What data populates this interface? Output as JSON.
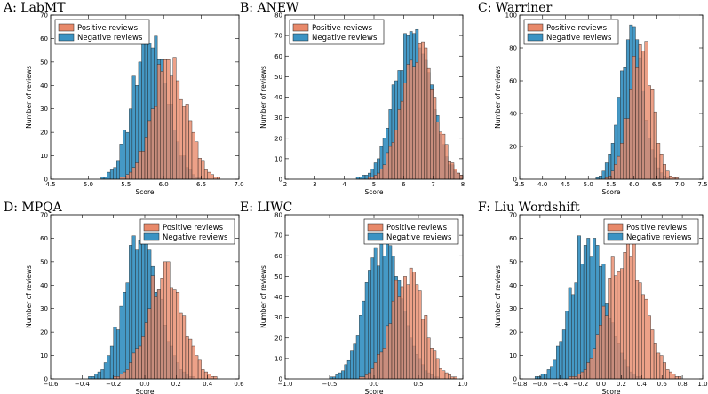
{
  "colors": {
    "positive": "#e8896a",
    "negative": "#3b93c3",
    "edge": "#222222"
  },
  "legend": {
    "positive": "Positive reviews",
    "negative": "Negative reviews"
  },
  "chart_data": [
    {
      "type": "histogram",
      "title": "A: LabMT",
      "xlabel": "Score",
      "ylabel": "Number of reviews",
      "xlim": [
        4.5,
        7.0
      ],
      "ylim": [
        0,
        70
      ],
      "xticks": [
        "4.5",
        "5.0",
        "5.5",
        "6.0",
        "6.5",
        "7.0"
      ],
      "yticks": [
        "0",
        "10",
        "20",
        "30",
        "40",
        "50",
        "60",
        "70"
      ],
      "series": [
        {
          "name": "Positive reviews",
          "mean": 6.08,
          "sd": 0.22,
          "peak": 53
        },
        {
          "name": "Negative reviews",
          "mean": 5.83,
          "sd": 0.22,
          "peak": 65
        }
      ]
    },
    {
      "type": "histogram",
      "title": "B: ANEW",
      "xlabel": "Score",
      "ylabel": "Number of reviews",
      "xlim": [
        2,
        8
      ],
      "ylim": [
        0,
        80
      ],
      "xticks": [
        "2",
        "3",
        "4",
        "5",
        "6",
        "7",
        "8"
      ],
      "yticks": [
        "0",
        "10",
        "20",
        "30",
        "40",
        "50",
        "60",
        "70",
        "80"
      ],
      "series": [
        {
          "name": "Positive reviews",
          "mean": 6.5,
          "sd": 0.55,
          "peak": 70
        },
        {
          "name": "Negative reviews",
          "mean": 6.3,
          "sd": 0.6,
          "peak": 74
        }
      ]
    },
    {
      "type": "histogram",
      "title": "C: Warriner",
      "xlabel": "Score",
      "ylabel": "Number of reviews",
      "xlim": [
        3.5,
        7.5
      ],
      "ylim": [
        0,
        100
      ],
      "xticks": [
        "3.5",
        "4.0",
        "4.5",
        "5.0",
        "5.5",
        "6.0",
        "6.5",
        "7.0",
        "7.5"
      ],
      "yticks": [
        "0",
        "20",
        "40",
        "60",
        "80",
        "100"
      ],
      "series": [
        {
          "name": "Positive reviews",
          "mean": 6.15,
          "sd": 0.25,
          "peak": 88
        },
        {
          "name": "Negative reviews",
          "mean": 5.95,
          "sd": 0.25,
          "peak": 96
        }
      ]
    },
    {
      "type": "histogram",
      "title": "D: MPQA",
      "xlabel": "Score",
      "ylabel": "Number of reviews",
      "xlim": [
        -0.6,
        0.6
      ],
      "ylim": [
        0,
        70
      ],
      "xticks": [
        "-0.6",
        "-0.4",
        "-0.2",
        "0.0",
        "0.2",
        "0.4",
        "0.6"
      ],
      "yticks": [
        "0",
        "10",
        "20",
        "30",
        "40",
        "50",
        "60",
        "70"
      ],
      "series": [
        {
          "name": "Positive reviews",
          "mean": 0.13,
          "sd": 0.11,
          "peak": 50
        },
        {
          "name": "Negative reviews",
          "mean": -0.02,
          "sd": 0.11,
          "peak": 65
        }
      ]
    },
    {
      "type": "histogram",
      "title": "E: LIWC",
      "xlabel": "Score",
      "ylabel": "Number of reviews",
      "xlim": [
        -1.0,
        1.0
      ],
      "ylim": [
        0,
        80
      ],
      "xticks": [
        "-1.0",
        "-0.5",
        "0.0",
        "0.5",
        "1.0"
      ],
      "yticks": [
        "0",
        "10",
        "20",
        "30",
        "40",
        "50",
        "60",
        "70",
        "80"
      ],
      "series": [
        {
          "name": "Positive reviews",
          "mean": 0.38,
          "sd": 0.18,
          "peak": 55
        },
        {
          "name": "Negative reviews",
          "mean": 0.12,
          "sd": 0.2,
          "peak": 72
        }
      ]
    },
    {
      "type": "histogram",
      "title": "F: Liu Wordshift",
      "xlabel": "Score",
      "ylabel": "Number of reviews",
      "xlim": [
        -0.8,
        1.0
      ],
      "ylim": [
        0,
        70
      ],
      "xticks": [
        "-0.8",
        "-0.6",
        "-0.4",
        "-0.2",
        "0.0",
        "0.2",
        "0.4",
        "0.6",
        "0.8",
        "1.0"
      ],
      "yticks": [
        "0",
        "10",
        "20",
        "30",
        "40",
        "50",
        "60",
        "70"
      ],
      "series": [
        {
          "name": "Positive reviews",
          "mean": 0.25,
          "sd": 0.18,
          "peak": 60
        },
        {
          "name": "Negative reviews",
          "mean": -0.12,
          "sd": 0.17,
          "peak": 63
        }
      ]
    }
  ]
}
